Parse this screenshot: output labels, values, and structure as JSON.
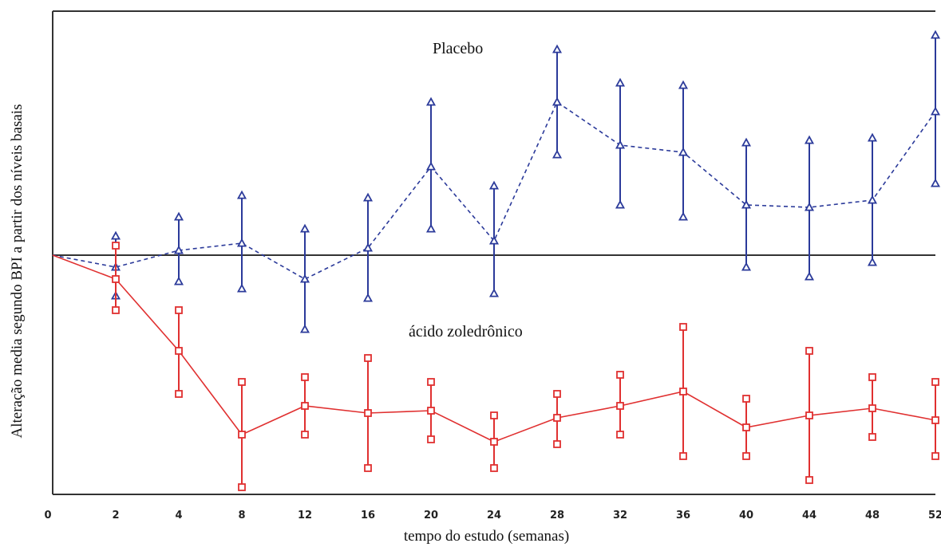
{
  "chart_data": {
    "type": "line",
    "title": "",
    "xlabel": "tempo do estudo (semanas)",
    "ylabel": "Alteração media segundo BPI a partir dos níveis basais",
    "x_ticks": [
      "0",
      "2",
      "4",
      "8",
      "12",
      "16",
      "20",
      "24",
      "28",
      "32",
      "36",
      "40",
      "44",
      "48",
      "52"
    ],
    "y_ticks": [],
    "grid": false,
    "reference_line": 0,
    "ylim": [
      -1.0,
      1.02
    ],
    "series": [
      {
        "name": "Placebo",
        "color": "#2b3a9a",
        "marker": "triangle",
        "line_style": "dashed",
        "mean": [
          0,
          -0.05,
          0.02,
          0.05,
          -0.1,
          0.03,
          0.37,
          0.06,
          0.64,
          0.46,
          0.43,
          0.21,
          0.2,
          0.23,
          0.6
        ],
        "upper": [
          null,
          0.08,
          0.16,
          0.25,
          0.11,
          0.24,
          0.64,
          0.29,
          0.86,
          0.72,
          0.71,
          0.47,
          0.48,
          0.49,
          0.92
        ],
        "lower": [
          null,
          -0.17,
          -0.11,
          -0.14,
          -0.31,
          -0.18,
          0.11,
          -0.16,
          0.42,
          0.21,
          0.16,
          -0.05,
          -0.09,
          -0.03,
          0.3
        ]
      },
      {
        "name": "ácido zoledrônico",
        "color": "#e03030",
        "marker": "square",
        "line_style": "solid",
        "mean": [
          0,
          -0.1,
          -0.4,
          -0.75,
          -0.63,
          -0.66,
          -0.65,
          -0.78,
          -0.68,
          -0.63,
          -0.57,
          -0.72,
          -0.67,
          -0.64,
          -0.69
        ],
        "upper": [
          null,
          0.04,
          -0.23,
          -0.53,
          -0.51,
          -0.43,
          -0.53,
          -0.67,
          -0.58,
          -0.5,
          -0.3,
          -0.6,
          -0.4,
          -0.51,
          -0.53
        ],
        "lower": [
          null,
          -0.23,
          -0.58,
          -0.97,
          -0.75,
          -0.89,
          -0.77,
          -0.89,
          -0.79,
          -0.75,
          -0.84,
          -0.84,
          -0.94,
          -0.76,
          -0.84
        ]
      }
    ],
    "annotations": [
      {
        "text": "Placebo"
      },
      {
        "text": "ácido zoledrônico"
      }
    ]
  }
}
